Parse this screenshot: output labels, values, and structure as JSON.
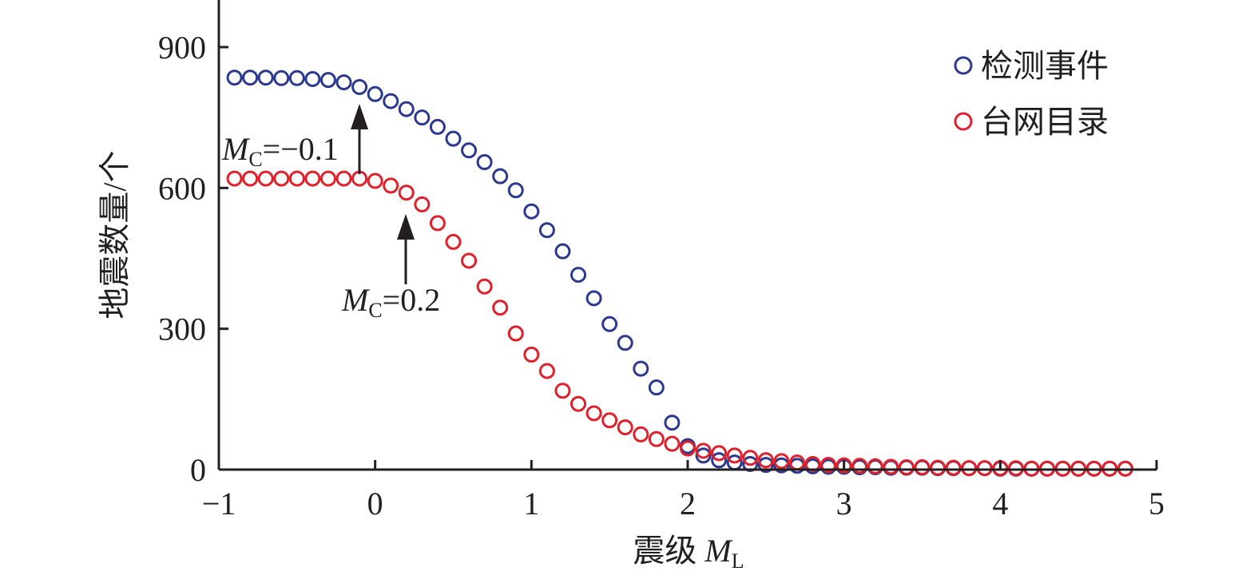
{
  "chart_data": {
    "type": "scatter",
    "xlabel_main": "震级 ",
    "xlabel_var": "M",
    "xlabel_sub": "L",
    "ylabel": "地震数量/个",
    "xlim": [
      -1,
      5
    ],
    "ylim": [
      0,
      1000
    ],
    "xticks": [
      -1,
      0,
      1,
      2,
      3,
      4,
      5
    ],
    "xtick_labels": [
      "−1",
      "0",
      "1",
      "2",
      "3",
      "4",
      "5"
    ],
    "yticks": [
      0,
      300,
      600,
      900
    ],
    "ytick_labels": [
      "0",
      "300",
      "600",
      "900"
    ],
    "grid": false,
    "legend_position": "top-right",
    "series": [
      {
        "name": "检测事件",
        "color": "#2b3990",
        "marker": "open-circle",
        "x": [
          -0.9,
          -0.8,
          -0.7,
          -0.6,
          -0.5,
          -0.4,
          -0.3,
          -0.2,
          -0.1,
          0.0,
          0.1,
          0.2,
          0.3,
          0.4,
          0.5,
          0.6,
          0.7,
          0.8,
          0.9,
          1.0,
          1.1,
          1.2,
          1.3,
          1.4,
          1.5,
          1.6,
          1.7,
          1.8,
          1.9,
          2.0,
          2.1,
          2.2,
          2.3,
          2.4,
          2.5,
          2.6,
          2.7,
          2.8,
          2.9,
          3.0,
          3.1,
          3.2,
          3.3,
          3.4,
          3.5,
          3.6,
          3.7,
          3.8,
          3.9,
          4.0,
          4.1,
          4.2,
          4.3,
          4.4,
          4.5,
          4.6,
          4.7,
          4.8
        ],
        "y": [
          835,
          835,
          835,
          834,
          834,
          832,
          830,
          825,
          815,
          800,
          785,
          768,
          750,
          730,
          705,
          680,
          655,
          625,
          595,
          550,
          510,
          465,
          415,
          365,
          310,
          270,
          215,
          175,
          100,
          50,
          30,
          20,
          15,
          12,
          10,
          9,
          8,
          7,
          6,
          6,
          5,
          5,
          4,
          4,
          4,
          3,
          3,
          3,
          3,
          2,
          2,
          2,
          2,
          2,
          2,
          2,
          2,
          2
        ]
      },
      {
        "name": "台网目录",
        "color": "#e0202a",
        "marker": "open-circle",
        "x": [
          -0.9,
          -0.8,
          -0.7,
          -0.6,
          -0.5,
          -0.4,
          -0.3,
          -0.2,
          -0.1,
          0.0,
          0.1,
          0.2,
          0.3,
          0.4,
          0.5,
          0.6,
          0.7,
          0.8,
          0.9,
          1.0,
          1.1,
          1.2,
          1.3,
          1.4,
          1.5,
          1.6,
          1.7,
          1.8,
          1.9,
          2.0,
          2.1,
          2.2,
          2.3,
          2.4,
          2.5,
          2.6,
          2.7,
          2.8,
          2.9,
          3.0,
          3.1,
          3.2,
          3.3,
          3.4,
          3.5,
          3.6,
          3.7,
          3.8,
          3.9,
          4.0,
          4.1,
          4.2,
          4.3,
          4.4,
          4.5,
          4.6,
          4.7,
          4.8
        ],
        "y": [
          620,
          620,
          620,
          620,
          620,
          620,
          620,
          620,
          620,
          615,
          605,
          590,
          565,
          525,
          485,
          445,
          390,
          345,
          290,
          245,
          210,
          168,
          140,
          120,
          105,
          90,
          75,
          65,
          55,
          45,
          40,
          35,
          30,
          25,
          20,
          18,
          15,
          12,
          10,
          9,
          8,
          7,
          6,
          5,
          5,
          4,
          4,
          3,
          3,
          3,
          3,
          2,
          2,
          2,
          2,
          2,
          2,
          2
        ]
      }
    ],
    "annotations": [
      {
        "var": "M",
        "sub": "C",
        "value": "=−0.1",
        "target_x": -0.1,
        "target_y": 815
      },
      {
        "var": "M",
        "sub": "C",
        "value": "=0.2",
        "target_x": 0.2,
        "target_y": 590
      }
    ]
  }
}
